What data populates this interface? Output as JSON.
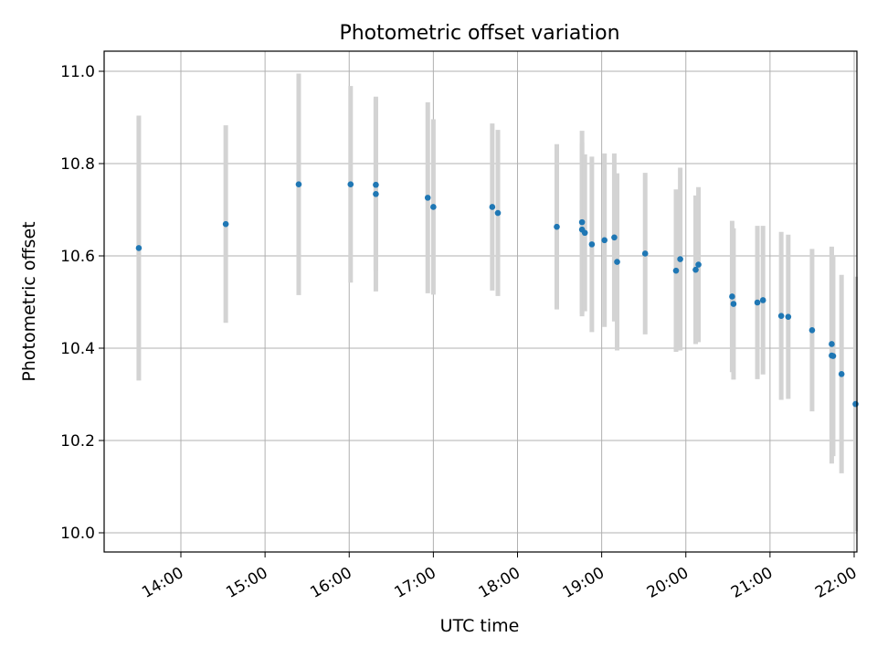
{
  "chart_data": {
    "type": "scatter",
    "title": "Photometric offset variation",
    "xlabel": "UTC time",
    "ylabel": "Photometric offset",
    "x_type": "time",
    "xlim": [
      "13:15",
      "22:00"
    ],
    "ylim": [
      9.96,
      11.04
    ],
    "x_ticks": [
      "14:00",
      "15:00",
      "16:00",
      "17:00",
      "18:00",
      "19:00",
      "20:00",
      "21:00",
      "22:00"
    ],
    "y_ticks": [
      10.0,
      10.2,
      10.4,
      10.6,
      10.8,
      11.0
    ],
    "grid": true,
    "colors": {
      "points": "#1f77b4",
      "errorbars": "#d3d3d3",
      "grid": "#b0b0b0"
    },
    "series": [
      {
        "points": [
          {
            "t": "13:30",
            "y": 10.617,
            "err": 0.287
          },
          {
            "t": "14:32",
            "y": 10.669,
            "err": 0.214
          },
          {
            "t": "15:24",
            "y": 10.755,
            "err": 0.24
          },
          {
            "t": "16:01",
            "y": 10.755,
            "err": 0.213
          },
          {
            "t": "16:19",
            "y": 10.754,
            "err": 0.187
          },
          {
            "t": "16:19",
            "y": 10.734,
            "err": 0.211
          },
          {
            "t": "16:56",
            "y": 10.726,
            "err": 0.207
          },
          {
            "t": "17:00",
            "y": 10.706,
            "err": 0.19
          },
          {
            "t": "17:42",
            "y": 10.706,
            "err": 0.181
          },
          {
            "t": "17:46",
            "y": 10.693,
            "err": 0.18
          },
          {
            "t": "18:28",
            "y": 10.663,
            "err": 0.179
          },
          {
            "t": "18:46",
            "y": 10.673,
            "err": 0.198
          },
          {
            "t": "18:46",
            "y": 10.657,
            "err": 0.188
          },
          {
            "t": "18:48",
            "y": 10.65,
            "err": 0.17
          },
          {
            "t": "18:53",
            "y": 10.625,
            "err": 0.19
          },
          {
            "t": "19:02",
            "y": 10.634,
            "err": 0.188
          },
          {
            "t": "19:09",
            "y": 10.64,
            "err": 0.182
          },
          {
            "t": "19:11",
            "y": 10.587,
            "err": 0.192
          },
          {
            "t": "19:31",
            "y": 10.605,
            "err": 0.175
          },
          {
            "t": "19:53",
            "y": 10.568,
            "err": 0.176
          },
          {
            "t": "19:56",
            "y": 10.593,
            "err": 0.198
          },
          {
            "t": "20:07",
            "y": 10.57,
            "err": 0.161
          },
          {
            "t": "20:09",
            "y": 10.581,
            "err": 0.168
          },
          {
            "t": "20:33",
            "y": 10.512,
            "err": 0.164
          },
          {
            "t": "20:34",
            "y": 10.496,
            "err": 0.164
          },
          {
            "t": "20:51",
            "y": 10.499,
            "err": 0.166
          },
          {
            "t": "20:55",
            "y": 10.504,
            "err": 0.161
          },
          {
            "t": "21:08",
            "y": 10.47,
            "err": 0.182
          },
          {
            "t": "21:13",
            "y": 10.468,
            "err": 0.178
          },
          {
            "t": "21:30",
            "y": 10.439,
            "err": 0.176
          },
          {
            "t": "21:44",
            "y": 10.409,
            "err": 0.211
          },
          {
            "t": "21:44",
            "y": 10.384,
            "err": 0.234
          },
          {
            "t": "21:45",
            "y": 10.383,
            "err": 0.217
          },
          {
            "t": "21:51",
            "y": 10.344,
            "err": 0.215
          },
          {
            "t": "22:01",
            "y": 10.279,
            "err": 0.276
          }
        ]
      }
    ]
  }
}
